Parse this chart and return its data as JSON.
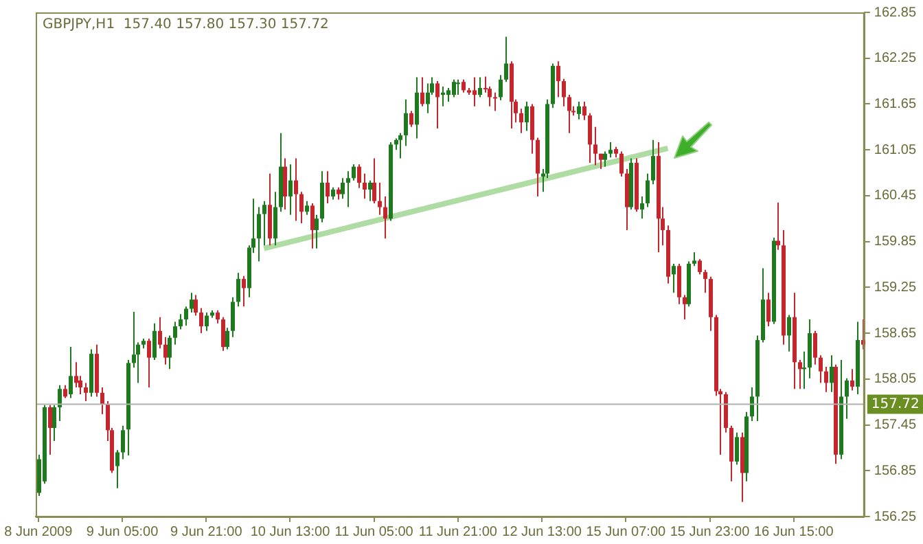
{
  "chart_data": {
    "type": "candlestick",
    "title": "GBPJPY,H1  157.40 157.80 157.30 157.72",
    "categories": [
      "8 Jun 2009",
      null,
      null,
      null,
      null,
      null,
      null,
      null,
      null,
      null,
      null,
      null,
      null,
      null,
      null,
      null,
      "9 Jun 05:00",
      null,
      null,
      null,
      null,
      null,
      null,
      null,
      null,
      null,
      null,
      null,
      null,
      null,
      null,
      null,
      "9 Jun 21:00",
      null,
      null,
      null,
      null,
      null,
      null,
      null,
      null,
      null,
      null,
      null,
      null,
      null,
      null,
      null,
      "10 Jun 13:00",
      null,
      null,
      null,
      null,
      null,
      null,
      null,
      null,
      null,
      null,
      null,
      null,
      null,
      null,
      null,
      "11 Jun 05:00",
      null,
      null,
      null,
      null,
      null,
      null,
      null,
      null,
      null,
      null,
      null,
      null,
      null,
      null,
      null,
      "11 Jun 21:00",
      null,
      null,
      null,
      null,
      null,
      null,
      null,
      null,
      null,
      null,
      null,
      null,
      null,
      null,
      null,
      "12 Jun 13:00",
      null,
      null,
      null,
      null,
      null,
      null,
      null,
      null,
      null,
      null,
      null,
      null,
      null,
      null,
      null,
      "15 Jun 07:00",
      null,
      null,
      null,
      null,
      null,
      null,
      null,
      null,
      null,
      null,
      null,
      null,
      null,
      null,
      null,
      "15 Jun 23:00",
      null,
      null,
      null,
      null,
      null,
      null,
      null,
      null,
      null,
      null,
      null,
      null,
      null,
      null,
      null,
      "16 Jun 15:00",
      null,
      null,
      null,
      null,
      null,
      null,
      null,
      null,
      null,
      null,
      null,
      null,
      null
    ],
    "ohlc": [
      [
        156.56,
        157.06,
        156.52,
        157.0
      ],
      [
        156.71,
        157.71,
        156.68,
        157.68
      ],
      [
        157.68,
        157.71,
        157.06,
        157.41
      ],
      [
        157.41,
        157.71,
        157.24,
        157.68
      ],
      [
        157.68,
        157.97,
        157.5,
        157.92
      ],
      [
        157.92,
        157.97,
        157.8,
        157.82
      ],
      [
        157.85,
        158.47,
        157.8,
        158.09
      ],
      [
        158.09,
        158.27,
        157.94,
        158.0
      ],
      [
        158.03,
        158.09,
        157.85,
        157.94
      ],
      [
        157.94,
        158.0,
        157.76,
        157.87
      ],
      [
        157.87,
        158.44,
        157.82,
        158.38
      ],
      [
        158.38,
        158.5,
        157.82,
        157.87
      ],
      [
        157.87,
        157.94,
        157.59,
        157.72
      ],
      [
        157.72,
        157.76,
        157.24,
        157.38
      ],
      [
        157.38,
        157.41,
        156.82,
        156.85
      ],
      [
        156.91,
        157.12,
        156.62,
        157.09
      ],
      [
        157.09,
        157.44,
        157.0,
        157.38
      ],
      [
        157.39,
        158.3,
        157.05,
        158.26
      ],
      [
        158.26,
        158.93,
        158.2,
        158.37
      ],
      [
        158.37,
        158.53,
        158.0,
        158.5
      ],
      [
        158.5,
        158.58,
        158.45,
        158.55
      ],
      [
        158.55,
        158.58,
        157.94,
        158.33
      ],
      [
        158.33,
        158.78,
        158.3,
        158.68
      ],
      [
        158.68,
        158.86,
        158.45,
        158.5
      ],
      [
        158.5,
        158.6,
        158.24,
        158.33
      ],
      [
        158.33,
        158.62,
        158.18,
        158.59
      ],
      [
        158.59,
        158.8,
        158.5,
        158.74
      ],
      [
        158.74,
        158.9,
        158.7,
        158.83
      ],
      [
        158.83,
        159.0,
        158.75,
        158.97
      ],
      [
        158.97,
        159.18,
        158.92,
        159.09
      ],
      [
        159.09,
        159.15,
        158.88,
        158.92
      ],
      [
        158.92,
        158.98,
        158.65,
        158.74
      ],
      [
        158.74,
        158.92,
        158.68,
        158.88
      ],
      [
        158.88,
        158.95,
        158.85,
        158.92
      ],
      [
        158.92,
        158.95,
        158.78,
        158.83
      ],
      [
        158.83,
        158.86,
        158.42,
        158.47
      ],
      [
        158.47,
        158.72,
        158.44,
        158.68
      ],
      [
        158.68,
        159.12,
        158.6,
        159.06
      ],
      [
        159.06,
        159.44,
        159.0,
        159.36
      ],
      [
        159.36,
        159.4,
        159.0,
        159.24
      ],
      [
        159.24,
        159.8,
        159.12,
        159.77
      ],
      [
        159.77,
        160.41,
        159.7,
        159.89
      ],
      [
        159.89,
        160.3,
        159.59,
        160.21
      ],
      [
        160.21,
        160.38,
        159.8,
        160.33
      ],
      [
        160.33,
        160.74,
        159.8,
        159.89
      ],
      [
        159.89,
        160.5,
        159.8,
        160.3
      ],
      [
        160.3,
        161.27,
        160.24,
        160.83
      ],
      [
        160.83,
        160.94,
        160.27,
        160.44
      ],
      [
        160.44,
        160.86,
        160.2,
        160.65
      ],
      [
        160.65,
        160.94,
        160.12,
        160.47
      ],
      [
        160.47,
        160.5,
        160.09,
        160.24
      ],
      [
        160.24,
        160.38,
        160.2,
        160.32
      ],
      [
        160.32,
        160.35,
        159.76,
        160.0
      ],
      [
        160.0,
        160.2,
        159.76,
        160.15
      ],
      [
        160.15,
        160.77,
        160.1,
        160.62
      ],
      [
        160.62,
        160.77,
        160.35,
        160.44
      ],
      [
        160.44,
        160.56,
        160.4,
        160.53
      ],
      [
        160.53,
        160.56,
        160.4,
        160.47
      ],
      [
        160.47,
        160.68,
        160.41,
        160.62
      ],
      [
        160.62,
        160.77,
        160.3,
        160.68
      ],
      [
        160.68,
        160.86,
        160.65,
        160.83
      ],
      [
        160.83,
        160.86,
        160.55,
        160.62
      ],
      [
        160.62,
        160.74,
        160.41,
        160.53
      ],
      [
        160.53,
        160.65,
        160.38,
        160.62
      ],
      [
        160.62,
        160.94,
        160.35,
        160.38
      ],
      [
        160.38,
        160.62,
        160.2,
        160.3
      ],
      [
        160.3,
        160.44,
        159.89,
        160.15
      ],
      [
        160.15,
        161.15,
        160.12,
        161.12
      ],
      [
        161.12,
        161.2,
        161.05,
        161.18
      ],
      [
        161.18,
        161.27,
        160.94,
        161.24
      ],
      [
        161.24,
        161.71,
        161.1,
        161.53
      ],
      [
        161.53,
        161.56,
        161.35,
        161.38
      ],
      [
        161.38,
        162.0,
        161.2,
        161.8
      ],
      [
        161.8,
        162.0,
        161.62,
        161.65
      ],
      [
        161.65,
        161.92,
        161.53,
        161.8
      ],
      [
        161.8,
        162.0,
        161.77,
        161.92
      ],
      [
        161.92,
        161.95,
        161.33,
        161.74
      ],
      [
        161.77,
        161.88,
        161.62,
        161.8
      ],
      [
        161.77,
        161.86,
        161.68,
        161.83
      ],
      [
        161.77,
        161.97,
        161.74,
        161.94
      ],
      [
        161.92,
        161.97,
        161.77,
        161.93
      ],
      [
        161.94,
        161.97,
        161.8,
        161.83
      ],
      [
        161.83,
        161.86,
        161.77,
        161.8
      ],
      [
        161.83,
        162.0,
        161.62,
        161.77
      ],
      [
        161.77,
        162.0,
        161.74,
        161.86
      ],
      [
        161.86,
        162.01,
        161.8,
        161.85
      ],
      [
        161.85,
        161.88,
        161.62,
        161.74
      ],
      [
        161.74,
        161.8,
        161.56,
        161.73
      ],
      [
        161.74,
        162.03,
        161.7,
        161.97
      ],
      [
        161.97,
        162.53,
        161.94,
        162.18
      ],
      [
        162.18,
        162.21,
        161.33,
        161.68
      ],
      [
        161.68,
        161.71,
        161.41,
        161.53
      ],
      [
        161.53,
        161.59,
        161.27,
        161.41
      ],
      [
        161.41,
        161.68,
        161.3,
        161.62
      ],
      [
        161.62,
        161.65,
        161.0,
        161.18
      ],
      [
        161.18,
        161.21,
        160.44,
        160.74
      ],
      [
        160.7,
        160.8,
        160.5,
        160.74
      ],
      [
        160.74,
        161.71,
        160.68,
        161.65
      ],
      [
        161.65,
        162.18,
        161.6,
        162.15
      ],
      [
        162.15,
        162.21,
        161.74,
        161.95
      ],
      [
        161.95,
        161.98,
        161.62,
        161.74
      ],
      [
        161.74,
        161.77,
        161.27,
        161.56
      ],
      [
        161.56,
        161.62,
        161.5,
        161.55
      ],
      [
        161.52,
        161.68,
        161.45,
        161.62
      ],
      [
        161.62,
        161.68,
        161.44,
        161.5
      ],
      [
        161.5,
        161.53,
        160.88,
        161.12
      ],
      [
        161.12,
        161.35,
        160.85,
        161.0
      ],
      [
        161.0,
        161.0,
        160.8,
        160.92
      ],
      [
        160.92,
        161.03,
        160.83,
        161.0
      ],
      [
        161.0,
        161.15,
        160.95,
        161.05
      ],
      [
        161.06,
        161.09,
        160.95,
        161.0
      ],
      [
        161.0,
        161.03,
        160.7,
        160.74
      ],
      [
        160.74,
        160.8,
        160.0,
        160.3
      ],
      [
        160.3,
        160.94,
        160.27,
        160.88
      ],
      [
        160.88,
        160.94,
        160.24,
        160.27
      ],
      [
        160.27,
        160.44,
        160.15,
        160.35
      ],
      [
        160.35,
        160.74,
        160.3,
        160.65
      ],
      [
        160.65,
        161.18,
        160.6,
        160.97
      ],
      [
        160.97,
        161.15,
        159.71,
        160.15
      ],
      [
        160.15,
        160.3,
        159.8,
        160.0
      ],
      [
        160.0,
        160.06,
        159.3,
        159.39
      ],
      [
        159.42,
        159.56,
        159.18,
        159.53
      ],
      [
        159.53,
        159.56,
        159.03,
        159.12
      ],
      [
        159.12,
        159.15,
        158.83,
        159.03
      ],
      [
        159.03,
        159.59,
        159.0,
        159.56
      ],
      [
        159.56,
        159.71,
        159.53,
        159.6
      ],
      [
        159.6,
        159.62,
        159.42,
        159.45
      ],
      [
        159.45,
        159.48,
        159.18,
        159.36
      ],
      [
        159.36,
        159.39,
        158.68,
        158.86
      ],
      [
        158.86,
        158.89,
        157.83,
        157.89
      ],
      [
        157.89,
        157.92,
        157.06,
        157.85
      ],
      [
        157.85,
        157.88,
        157.35,
        157.41
      ],
      [
        157.41,
        157.44,
        156.71,
        156.97
      ],
      [
        156.97,
        157.35,
        156.93,
        157.29
      ],
      [
        157.29,
        157.35,
        156.44,
        156.82
      ],
      [
        156.82,
        157.62,
        156.71,
        157.56
      ],
      [
        157.56,
        157.94,
        157.5,
        157.82
      ],
      [
        157.82,
        158.62,
        157.5,
        158.56
      ],
      [
        158.56,
        159.5,
        158.53,
        159.09
      ],
      [
        159.09,
        159.18,
        158.74,
        158.8
      ],
      [
        158.8,
        159.9,
        158.77,
        159.86
      ],
      [
        159.86,
        160.36,
        159.74,
        159.8
      ],
      [
        159.8,
        160.0,
        158.5,
        158.62
      ],
      [
        158.62,
        158.89,
        158.41,
        158.86
      ],
      [
        158.86,
        159.18,
        157.92,
        158.27
      ],
      [
        158.27,
        158.3,
        157.92,
        158.18
      ],
      [
        158.18,
        158.41,
        157.92,
        158.2
      ],
      [
        158.2,
        158.83,
        158.06,
        158.65
      ],
      [
        158.65,
        158.68,
        158.24,
        158.33
      ],
      [
        158.33,
        158.36,
        158.0,
        158.15
      ],
      [
        158.15,
        158.21,
        157.88,
        158.0
      ],
      [
        158.0,
        158.36,
        157.88,
        158.21
      ],
      [
        158.21,
        158.24,
        156.94,
        157.06
      ],
      [
        157.06,
        158.3,
        157.0,
        157.82
      ],
      [
        157.82,
        158.06,
        157.53,
        158.03
      ],
      [
        158.03,
        158.18,
        157.9,
        157.95
      ],
      [
        157.95,
        158.8,
        157.85,
        158.56
      ],
      [
        158.56,
        158.83,
        158.44,
        158.5
      ]
    ],
    "colors": [
      "#1f7a1f",
      "#1f7a1f",
      "#c4262e",
      "#1f7a1f",
      "#1f7a1f",
      "#c4262e",
      "#1f7a1f",
      "#c4262e",
      "#c4262e",
      "#c4262e",
      "#1f7a1f",
      "#c4262e",
      "#c4262e",
      "#c4262e",
      "#c4262e",
      "#1f7a1f",
      "#1f7a1f",
      "#1f7a1f",
      "#1f7a1f",
      "#1f7a1f",
      "#1f7a1f",
      "#c4262e",
      "#1f7a1f",
      "#c4262e",
      "#c4262e",
      "#1f7a1f",
      "#1f7a1f",
      "#1f7a1f",
      "#1f7a1f",
      "#1f7a1f",
      "#c4262e",
      "#c4262e",
      "#1f7a1f",
      "#1f7a1f",
      "#c4262e",
      "#c4262e",
      "#1f7a1f",
      "#1f7a1f",
      "#1f7a1f",
      "#c4262e",
      "#1f7a1f",
      "#1f7a1f",
      "#1f7a1f",
      "#1f7a1f",
      "#c4262e",
      "#1f7a1f",
      "#1f7a1f",
      "#c4262e",
      "#1f7a1f",
      "#c4262e",
      "#c4262e",
      "#1f7a1f",
      "#c4262e",
      "#1f7a1f",
      "#1f7a1f",
      "#c4262e",
      "#1f7a1f",
      "#c4262e",
      "#1f7a1f",
      "#1f7a1f",
      "#1f7a1f",
      "#c4262e",
      "#c4262e",
      "#1f7a1f",
      "#c4262e",
      "#c4262e",
      "#c4262e",
      "#1f7a1f",
      "#1f7a1f",
      "#1f7a1f",
      "#1f7a1f",
      "#c4262e",
      "#1f7a1f",
      "#c4262e",
      "#1f7a1f",
      "#1f7a1f",
      "#c4262e",
      "#1f7a1f",
      "#1f7a1f",
      "#1f7a1f",
      "#1f7a1f",
      "#c4262e",
      "#c4262e",
      "#c4262e",
      "#1f7a1f",
      "#c4262e",
      "#c4262e",
      "#c4262e",
      "#1f7a1f",
      "#1f7a1f",
      "#c4262e",
      "#c4262e",
      "#c4262e",
      "#1f7a1f",
      "#c4262e",
      "#c4262e",
      "#1f7a1f",
      "#1f7a1f",
      "#1f7a1f",
      "#c4262e",
      "#c4262e",
      "#c4262e",
      "#c4262e",
      "#1f7a1f",
      "#c4262e",
      "#c4262e",
      "#c4262e",
      "#c4262e",
      "#1f7a1f",
      "#1f7a1f",
      "#c4262e",
      "#c4262e",
      "#c4262e",
      "#1f7a1f",
      "#c4262e",
      "#1f7a1f",
      "#1f7a1f",
      "#1f7a1f",
      "#c4262e",
      "#c4262e",
      "#c4262e",
      "#1f7a1f",
      "#c4262e",
      "#c4262e",
      "#1f7a1f",
      "#1f7a1f",
      "#c4262e",
      "#c4262e",
      "#c4262e",
      "#c4262e",
      "#c4262e",
      "#c4262e",
      "#c4262e",
      "#1f7a1f",
      "#c4262e",
      "#1f7a1f",
      "#1f7a1f",
      "#1f7a1f",
      "#1f7a1f",
      "#c4262e",
      "#1f7a1f",
      "#c4262e",
      "#c4262e",
      "#1f7a1f",
      "#c4262e",
      "#c4262e",
      "#1f7a1f",
      "#1f7a1f",
      "#c4262e",
      "#c4262e",
      "#c4262e",
      "#1f7a1f",
      "#c4262e",
      "#1f7a1f",
      "#1f7a1f",
      "#c4262e",
      "#1f7a1f",
      "#c4262e"
    ],
    "series": [
      {
        "type": "line",
        "color": "#aedca2",
        "values": [
          null,
          null,
          null,
          null,
          null,
          null,
          null,
          null,
          null,
          null,
          null,
          null,
          null,
          null,
          null,
          null,
          null,
          null,
          null,
          null,
          null,
          null,
          null,
          null,
          null,
          null,
          null,
          null,
          null,
          null,
          null,
          null,
          null,
          null,
          null,
          null,
          null,
          null,
          null,
          null,
          null,
          null,
          null,
          159.76,
          null,
          null,
          null,
          null,
          null,
          null,
          null,
          null,
          null,
          null,
          null,
          null,
          null,
          null,
          null,
          null,
          null,
          null,
          null,
          null,
          null,
          null,
          null,
          null,
          null,
          null,
          null,
          null,
          null,
          null,
          null,
          null,
          null,
          null,
          null,
          null,
          null,
          null,
          null,
          null,
          null,
          null,
          null,
          null,
          null,
          null,
          null,
          null,
          null,
          null,
          null,
          null,
          null,
          null,
          null,
          null,
          null,
          null,
          null,
          null,
          null,
          null,
          null,
          null,
          null,
          null,
          null,
          null,
          null,
          null,
          null,
          null,
          null,
          null,
          null,
          null,
          161.07,
          null,
          null,
          null,
          null,
          null,
          null,
          null,
          null,
          null,
          null,
          null,
          null,
          null,
          null,
          null,
          null,
          null,
          null,
          null,
          null,
          null,
          null,
          null,
          null,
          null,
          null,
          null,
          null,
          null,
          null,
          null,
          null,
          null,
          null,
          null,
          null,
          null
        ]
      }
    ],
    "ylim": [
      156.25,
      162.85
    ],
    "yticks": [
      156.25,
      156.85,
      157.45,
      158.05,
      158.65,
      159.25,
      159.85,
      160.45,
      161.05,
      161.65,
      162.25,
      162.85
    ],
    "ref_lines": [
      {
        "axis": "y",
        "value": 157.72,
        "label": "157.72",
        "color": "#b0b0b0"
      }
    ],
    "grid": false,
    "legend": false
  }
}
